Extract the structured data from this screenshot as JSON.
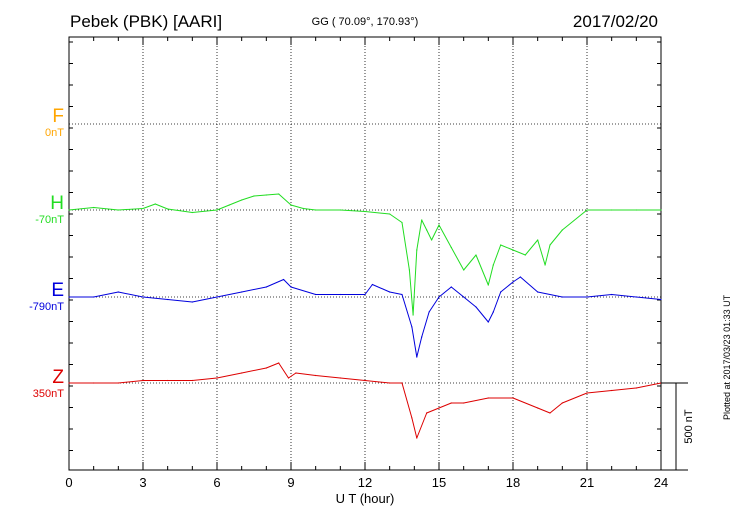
{
  "header": {
    "station": "Pebek (PBK)  [AARI]",
    "coords": "GG ( 70.09°, 170.93°)",
    "date": "2017/02/20"
  },
  "footer": {
    "plotted": "Plotted at 2017/03/23 01:33 UT",
    "scale_label": "500 nT"
  },
  "chart_data": {
    "type": "line",
    "xlabel": "U T (hour)",
    "xlim": [
      0,
      24
    ],
    "xticks": [
      0,
      3,
      6,
      9,
      12,
      15,
      18,
      21,
      24
    ],
    "grid": true,
    "scale_bar_nT": 500,
    "series": [
      {
        "name": "F",
        "baseline_label": "0nT",
        "color": "#ffa500",
        "x": [],
        "values": []
      },
      {
        "name": "H",
        "baseline_label": "-70nT",
        "color": "#22dd22",
        "x": [
          0,
          1,
          2,
          3,
          3.5,
          4,
          5,
          6,
          6.5,
          7,
          7.5,
          8,
          8.5,
          9,
          9.5,
          10,
          11,
          12,
          13,
          13.5,
          13.8,
          13.95,
          14.1,
          14.3,
          14.5,
          14.7,
          15,
          15.5,
          16,
          16.5,
          17,
          17.2,
          17.5,
          18,
          18.5,
          19,
          19.3,
          19.5,
          20,
          21,
          22,
          23,
          24
        ],
        "values": [
          0,
          5,
          0,
          3,
          12,
          2,
          -5,
          0,
          10,
          20,
          28,
          30,
          32,
          10,
          3,
          0,
          0,
          -3,
          -8,
          -25,
          -120,
          -210,
          -80,
          -20,
          -40,
          -60,
          -30,
          -75,
          -120,
          -90,
          -150,
          -110,
          -70,
          -80,
          -90,
          -60,
          -110,
          -70,
          -40,
          0,
          0,
          0,
          0
        ]
      },
      {
        "name": "E",
        "baseline_label": "-790nT",
        "color": "#0000dd",
        "x": [
          0,
          1,
          2,
          3,
          4,
          5,
          6,
          7,
          8,
          8.7,
          9,
          10,
          11,
          12,
          12.3,
          13,
          13.5,
          13.9,
          14.1,
          14.3,
          14.6,
          15,
          15.5,
          16,
          16.5,
          17,
          17.2,
          17.5,
          18,
          18.3,
          19,
          20,
          21,
          22,
          23,
          24
        ],
        "values": [
          0,
          0,
          10,
          0,
          -5,
          -10,
          0,
          10,
          20,
          35,
          20,
          5,
          5,
          5,
          25,
          10,
          5,
          -60,
          -120,
          -80,
          -30,
          0,
          20,
          0,
          -20,
          -50,
          -30,
          10,
          30,
          40,
          10,
          0,
          0,
          5,
          0,
          -5
        ]
      },
      {
        "name": "Z",
        "baseline_label": "350nT",
        "color": "#dd0000",
        "x": [
          0,
          1,
          2,
          3,
          4,
          5,
          6,
          7,
          8,
          8.5,
          8.9,
          9.2,
          10,
          11,
          12,
          13,
          13.5,
          13.9,
          14.1,
          14.5,
          15,
          15.5,
          16,
          17,
          18,
          19,
          19.5,
          20,
          21,
          22,
          23,
          24
        ],
        "values": [
          0,
          0,
          0,
          5,
          5,
          5,
          10,
          20,
          30,
          40,
          10,
          20,
          15,
          10,
          5,
          0,
          0,
          -70,
          -110,
          -60,
          -50,
          -40,
          -40,
          -30,
          -30,
          -50,
          -60,
          -40,
          -20,
          -15,
          -10,
          0
        ]
      }
    ]
  }
}
